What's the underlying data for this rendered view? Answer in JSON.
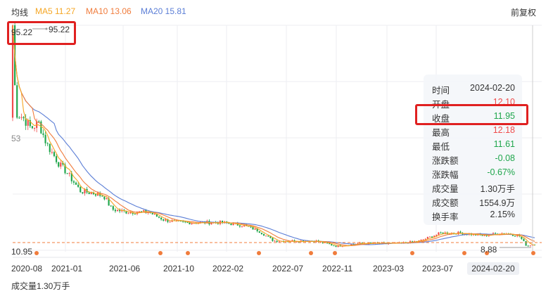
{
  "header": {
    "title": "均线",
    "ma5": "MA5 11.27",
    "ma10": "MA10 13.06",
    "ma20": "MA20 15.81",
    "adjust_label": "前复权"
  },
  "colors": {
    "ma5": "#f5a623",
    "ma10": "#f07c3c",
    "ma20": "#5b7ed6",
    "up": "#f04b4b",
    "down": "#1fa64c",
    "highlight": "#e02020"
  },
  "chart": {
    "max_label": "95.22",
    "max_marker": "95.22",
    "mid_label": "53",
    "min_label": "8.88",
    "last_price_label": "10.95"
  },
  "chart_data": {
    "type": "candlestick",
    "x_ticks": [
      "2020-08",
      "2021-01",
      "2021-06",
      "2021-10",
      "2022-02",
      "2022-07",
      "2022-11",
      "2023-03",
      "2023-07"
    ],
    "series": [
      {
        "name": "MA5 11.27"
      },
      {
        "name": "MA10 13.06"
      },
      {
        "name": "MA20 15.81"
      }
    ],
    "max_price": 95.22,
    "min_price": 8.88,
    "last_price": 10.95,
    "shape": [
      [
        0.0,
        95.22
      ],
      [
        0.006,
        62
      ],
      [
        0.02,
        60
      ],
      [
        0.035,
        56
      ],
      [
        0.05,
        58
      ],
      [
        0.065,
        50
      ],
      [
        0.09,
        42
      ],
      [
        0.1,
        40
      ],
      [
        0.13,
        32
      ],
      [
        0.16,
        31
      ],
      [
        0.175,
        30
      ],
      [
        0.19,
        25
      ],
      [
        0.22,
        24
      ],
      [
        0.26,
        24
      ],
      [
        0.29,
        21
      ],
      [
        0.32,
        20
      ],
      [
        0.36,
        20
      ],
      [
        0.4,
        20
      ],
      [
        0.44,
        19
      ],
      [
        0.47,
        17
      ],
      [
        0.5,
        13
      ],
      [
        0.55,
        13
      ],
      [
        0.58,
        13
      ],
      [
        0.62,
        11
      ],
      [
        0.66,
        12
      ],
      [
        0.7,
        12
      ],
      [
        0.74,
        12
      ],
      [
        0.78,
        13
      ],
      [
        0.82,
        16
      ],
      [
        0.86,
        16
      ],
      [
        0.9,
        15
      ],
      [
        0.94,
        16
      ],
      [
        0.97,
        15
      ],
      [
        0.985,
        11
      ],
      [
        1.0,
        11.95
      ]
    ]
  },
  "tooltip": {
    "rows": [
      {
        "key": "时间",
        "value": "2024-02-20",
        "color": "#333333"
      },
      {
        "key": "开盘",
        "value": "12.10",
        "color": "#f04b4b"
      },
      {
        "key": "收盘",
        "value": "11.95",
        "color": "#1fa64c"
      },
      {
        "key": "最高",
        "value": "12.18",
        "color": "#f04b4b"
      },
      {
        "key": "最低",
        "value": "11.61",
        "color": "#1fa64c"
      },
      {
        "key": "涨跌额",
        "value": "-0.08",
        "color": "#1fa64c"
      },
      {
        "key": "涨跌幅",
        "value": "-0.67%",
        "color": "#1fa64c"
      },
      {
        "key": "成交量",
        "value": "1.30万手",
        "color": "#333333"
      },
      {
        "key": "成交额",
        "value": "1554.9万",
        "color": "#333333"
      },
      {
        "key": "换手率",
        "value": "2.15%",
        "color": "#333333"
      }
    ]
  },
  "x_axis": {
    "ticks": [
      "2020-08",
      "2021-01",
      "2021-06",
      "2021-10",
      "2022-02",
      "2022-07",
      "2022-11",
      "2023-03",
      "2023-07"
    ],
    "cursor_date": "2024-02-20"
  },
  "volume": {
    "label": "成交量1.30万手"
  }
}
